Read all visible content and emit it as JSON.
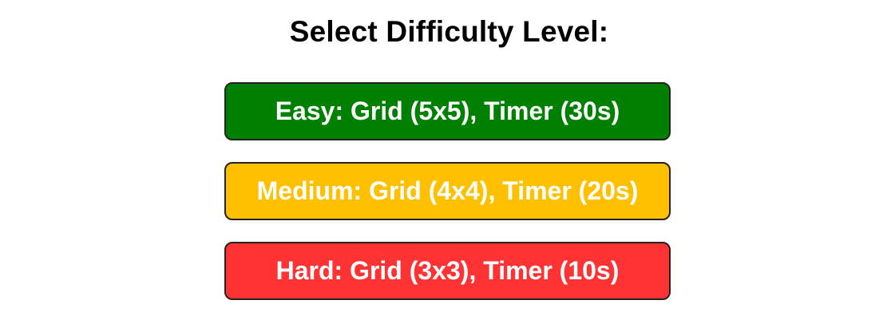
{
  "title": "Select Difficulty Level:",
  "levels": [
    {
      "label": "Easy: Grid (5x5), Timer (30s)",
      "color": "#008000"
    },
    {
      "label": "Medium: Grid (4x4), Timer (20s)",
      "color": "#FFC000"
    },
    {
      "label": "Hard: Grid (3x3), Timer (10s)",
      "color": "#FF3333"
    }
  ]
}
